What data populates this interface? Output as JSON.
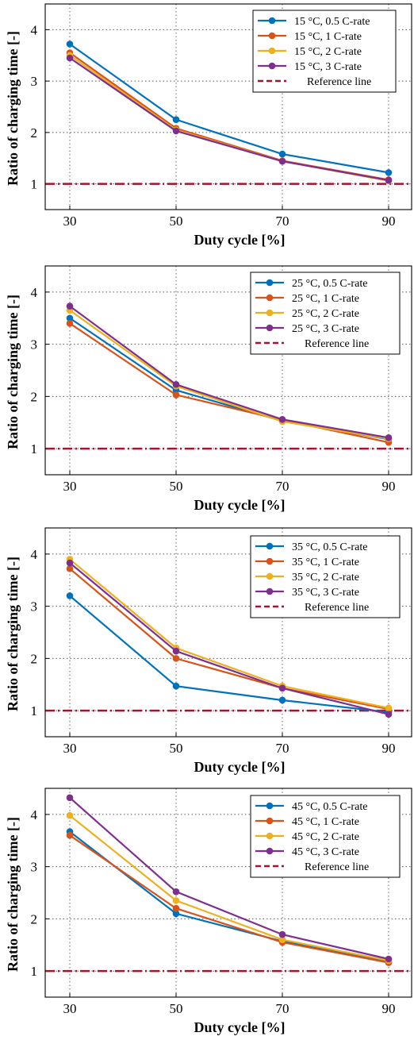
{
  "chart_data": [
    {
      "type": "line",
      "categories": [
        "30",
        "50",
        "70",
        "90"
      ],
      "xlabel": "Duty cycle [%]",
      "ylabel": "Ratio of charging time [-]",
      "ylim": [
        0.5,
        4.5
      ],
      "yticks": [
        "1",
        "2",
        "3",
        "4"
      ],
      "grid": true,
      "legend_position": "top-right",
      "reference": {
        "name": "Reference line",
        "value": 1.0,
        "color": "#a2142f"
      },
      "series": [
        {
          "name": "15 °C, 0.5 C-rate",
          "color": "#0072bd",
          "values": [
            3.72,
            2.25,
            1.58,
            1.22
          ]
        },
        {
          "name": "15 °C, 1 C-rate",
          "color": "#d95319",
          "values": [
            3.55,
            2.08,
            1.45,
            1.08
          ]
        },
        {
          "name": "15 °C, 2 C-rate",
          "color": "#edb120",
          "values": [
            3.5,
            2.05,
            1.44,
            1.06
          ]
        },
        {
          "name": "15 °C, 3 C-rate",
          "color": "#7e2f8e",
          "values": [
            3.45,
            2.03,
            1.44,
            1.07
          ]
        }
      ]
    },
    {
      "type": "line",
      "categories": [
        "30",
        "50",
        "70",
        "90"
      ],
      "xlabel": "Duty cycle [%]",
      "ylabel": "Ratio of charging time [-]",
      "ylim": [
        0.5,
        4.5
      ],
      "yticks": [
        "1",
        "2",
        "3",
        "4"
      ],
      "grid": true,
      "legend_position": "top-right",
      "reference": {
        "name": "Reference line",
        "value": 1.0,
        "color": "#a2142f"
      },
      "series": [
        {
          "name": "25 °C, 0.5 C-rate",
          "color": "#0072bd",
          "values": [
            3.5,
            2.12,
            1.53,
            1.18
          ]
        },
        {
          "name": "25 °C, 1 C-rate",
          "color": "#d95319",
          "values": [
            3.4,
            2.03,
            1.55,
            1.12
          ]
        },
        {
          "name": "25 °C, 2 C-rate",
          "color": "#edb120",
          "values": [
            3.65,
            2.2,
            1.52,
            1.19
          ]
        },
        {
          "name": "25 °C, 3 C-rate",
          "color": "#7e2f8e",
          "values": [
            3.73,
            2.23,
            1.56,
            1.21
          ]
        }
      ]
    },
    {
      "type": "line",
      "categories": [
        "30",
        "50",
        "70",
        "90"
      ],
      "xlabel": "Duty cycle [%]",
      "ylabel": "Ratio of charging time [-]",
      "ylim": [
        0.5,
        4.5
      ],
      "yticks": [
        "1",
        "2",
        "3",
        "4"
      ],
      "grid": true,
      "legend_position": "top-right",
      "reference": {
        "name": "Reference line",
        "value": 1.0,
        "color": "#a2142f"
      },
      "series": [
        {
          "name": "35 °C, 0.5 C-rate",
          "color": "#0072bd",
          "values": [
            3.2,
            1.47,
            1.2,
            0.97
          ]
        },
        {
          "name": "35 °C, 1 C-rate",
          "color": "#d95319",
          "values": [
            3.72,
            2.0,
            1.43,
            1.03
          ]
        },
        {
          "name": "35 °C, 2 C-rate",
          "color": "#edb120",
          "values": [
            3.9,
            2.2,
            1.47,
            1.05
          ]
        },
        {
          "name": "35 °C, 3 C-rate",
          "color": "#7e2f8e",
          "values": [
            3.83,
            2.14,
            1.43,
            0.93
          ]
        }
      ]
    },
    {
      "type": "line",
      "categories": [
        "30",
        "50",
        "70",
        "90"
      ],
      "xlabel": "Duty cycle [%]",
      "ylabel": "Ratio of charging time [-]",
      "ylim": [
        0.5,
        4.5
      ],
      "yticks": [
        "1",
        "2",
        "3",
        "4"
      ],
      "grid": true,
      "legend_position": "top-right",
      "reference": {
        "name": "Reference line",
        "value": 1.0,
        "color": "#a2142f"
      },
      "series": [
        {
          "name": "45 °C, 0.5 C-rate",
          "color": "#0072bd",
          "values": [
            3.67,
            2.1,
            1.57,
            1.17
          ]
        },
        {
          "name": "45 °C, 1 C-rate",
          "color": "#d95319",
          "values": [
            3.6,
            2.2,
            1.55,
            1.16
          ]
        },
        {
          "name": "45 °C, 2 C-rate",
          "color": "#edb120",
          "values": [
            3.98,
            2.35,
            1.6,
            1.2
          ]
        },
        {
          "name": "45 °C, 3 C-rate",
          "color": "#7e2f8e",
          "values": [
            4.32,
            2.52,
            1.7,
            1.23
          ]
        }
      ]
    }
  ]
}
